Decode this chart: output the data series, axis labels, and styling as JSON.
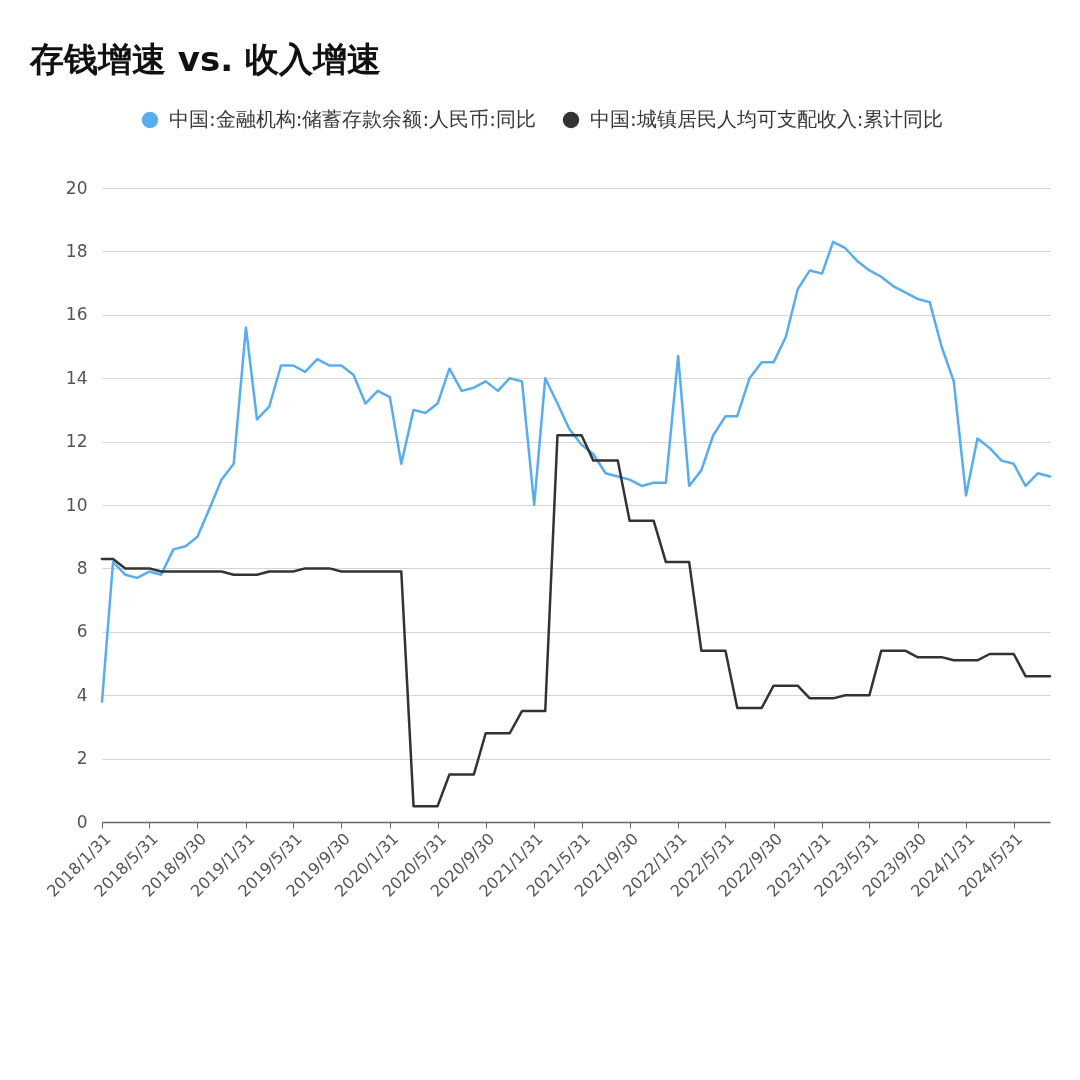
{
  "chart_data": {
    "type": "line",
    "title": "存钱增速 vs. 收入增速",
    "x": [
      "2018-01-31",
      "2018-02-28",
      "2018-03-31",
      "2018-04-30",
      "2018-05-31",
      "2018-06-30",
      "2018-07-31",
      "2018-08-31",
      "2018-09-30",
      "2018-10-31",
      "2018-11-30",
      "2018-12-31",
      "2019-01-31",
      "2019-02-28",
      "2019-03-31",
      "2019-04-30",
      "2019-05-31",
      "2019-06-30",
      "2019-07-31",
      "2019-08-31",
      "2019-09-30",
      "2019-10-31",
      "2019-11-30",
      "2019-12-31",
      "2020-01-31",
      "2020-02-29",
      "2020-03-31",
      "2020-04-30",
      "2020-05-31",
      "2020-06-30",
      "2020-07-31",
      "2020-08-31",
      "2020-09-30",
      "2020-10-31",
      "2020-11-30",
      "2020-12-31",
      "2021-01-31",
      "2021-02-28",
      "2021-03-31",
      "2021-04-30",
      "2021-05-31",
      "2021-06-30",
      "2021-07-31",
      "2021-08-31",
      "2021-09-30",
      "2021-10-31",
      "2021-11-30",
      "2021-12-31",
      "2022-01-31",
      "2022-02-28",
      "2022-03-31",
      "2022-04-30",
      "2022-05-31",
      "2022-06-30",
      "2022-07-31",
      "2022-08-31",
      "2022-09-30",
      "2022-10-31",
      "2022-11-30",
      "2022-12-31",
      "2023-01-31",
      "2023-02-28",
      "2023-03-31",
      "2023-04-30",
      "2023-05-31",
      "2023-06-30",
      "2023-07-31",
      "2023-08-31",
      "2023-09-30",
      "2023-10-31",
      "2023-11-30",
      "2023-12-31",
      "2024-01-31",
      "2024-02-29",
      "2024-03-31",
      "2024-04-30",
      "2024-05-31",
      "2024-06-30",
      "2024-07-31",
      "2024-08-31"
    ],
    "series": [
      {
        "name": "中国:金融机构:储蓄存款余额:人民币:同比",
        "color": "#58adf0",
        "values": [
          3.8,
          8.2,
          7.8,
          7.7,
          7.9,
          7.8,
          8.6,
          8.7,
          9.0,
          9.9,
          10.8,
          11.3,
          15.6,
          12.7,
          13.1,
          14.4,
          14.4,
          14.2,
          14.6,
          14.4,
          14.4,
          14.1,
          13.2,
          13.6,
          13.4,
          11.3,
          13.0,
          12.9,
          13.2,
          14.3,
          13.6,
          13.7,
          13.9,
          13.6,
          14.0,
          13.9,
          10.0,
          14.0,
          13.2,
          12.4,
          11.9,
          11.6,
          11.0,
          10.9,
          10.8,
          10.6,
          10.7,
          10.7,
          14.7,
          10.6,
          11.1,
          12.2,
          12.8,
          12.8,
          14.0,
          14.5,
          14.5,
          15.3,
          16.8,
          17.4,
          17.3,
          18.3,
          18.1,
          17.7,
          17.4,
          17.2,
          16.9,
          16.7,
          16.5,
          16.4,
          15.0,
          13.9,
          10.3,
          12.1,
          11.8,
          11.4,
          11.3,
          10.6,
          11.0,
          10.9
        ]
      },
      {
        "name": "中国:城镇居民人均可支配收入:累计同比",
        "color": "#333333",
        "values": [
          8.3,
          8.3,
          8.0,
          8.0,
          8.0,
          7.9,
          7.9,
          7.9,
          7.9,
          7.9,
          7.9,
          7.8,
          7.8,
          7.8,
          7.9,
          7.9,
          7.9,
          8.0,
          8.0,
          8.0,
          7.9,
          7.9,
          7.9,
          7.9,
          7.9,
          7.9,
          0.5,
          0.5,
          0.5,
          1.5,
          1.5,
          1.5,
          2.8,
          2.8,
          2.8,
          3.5,
          3.5,
          3.5,
          12.2,
          12.2,
          12.2,
          11.4,
          11.4,
          11.4,
          9.5,
          9.5,
          9.5,
          8.2,
          8.2,
          8.2,
          5.4,
          5.4,
          5.4,
          3.6,
          3.6,
          3.6,
          4.3,
          4.3,
          4.3,
          3.9,
          3.9,
          3.9,
          4.0,
          4.0,
          4.0,
          5.4,
          5.4,
          5.4,
          5.2,
          5.2,
          5.2,
          5.1,
          5.1,
          5.1,
          5.3,
          5.3,
          5.3,
          4.6,
          4.6,
          4.6
        ]
      }
    ],
    "xlim": [
      "2018-01-31",
      "2024-08-31"
    ],
    "xticks": [
      {
        "value": "2018-01-31",
        "label": "2018/1/31"
      },
      {
        "value": "2018-05-31",
        "label": "2018/5/31"
      },
      {
        "value": "2018-09-30",
        "label": "2018/9/30"
      },
      {
        "value": "2019-01-31",
        "label": "2019/1/31"
      },
      {
        "value": "2019-05-31",
        "label": "2019/5/31"
      },
      {
        "value": "2019-09-30",
        "label": "2019/9/30"
      },
      {
        "value": "2020-01-31",
        "label": "2020/1/31"
      },
      {
        "value": "2020-05-31",
        "label": "2020/5/31"
      },
      {
        "value": "2020-09-30",
        "label": "2020/9/30"
      },
      {
        "value": "2021-01-31",
        "label": "2021/1/31"
      },
      {
        "value": "2021-05-31",
        "label": "2021/5/31"
      },
      {
        "value": "2021-09-30",
        "label": "2021/9/30"
      },
      {
        "value": "2022-01-31",
        "label": "2022/1/31"
      },
      {
        "value": "2022-05-31",
        "label": "2022/5/31"
      },
      {
        "value": "2022-09-30",
        "label": "2022/9/30"
      },
      {
        "value": "2023-01-31",
        "label": "2023/1/31"
      },
      {
        "value": "2023-05-31",
        "label": "2023/5/31"
      },
      {
        "value": "2023-09-30",
        "label": "2023/9/30"
      },
      {
        "value": "2024-01-31",
        "label": "2024/1/31"
      },
      {
        "value": "2024-05-31",
        "label": "2024/5/31"
      }
    ],
    "ylim": [
      0,
      20
    ],
    "yticks": [
      0,
      2,
      4,
      6,
      8,
      10,
      12,
      14,
      16,
      18,
      20
    ],
    "grid": "y",
    "legend": "top"
  }
}
